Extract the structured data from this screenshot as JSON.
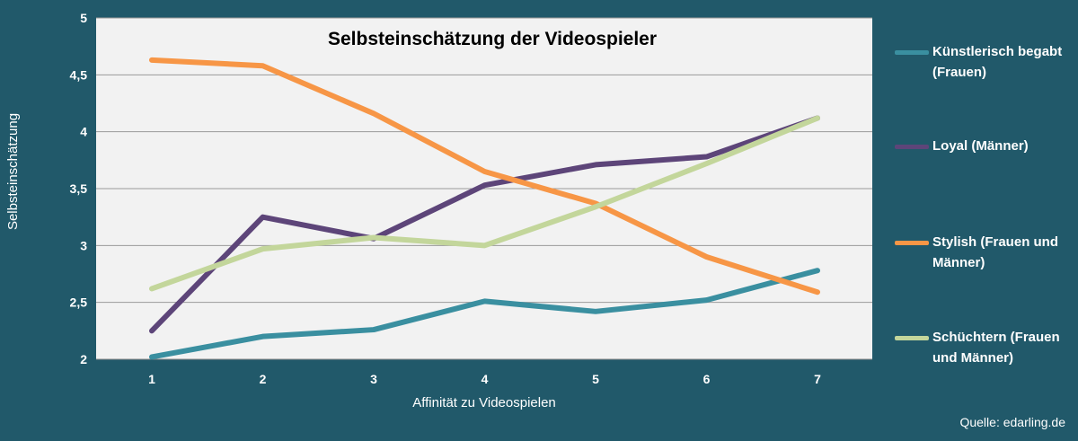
{
  "chart_data": {
    "type": "line",
    "title": "Selbsteinschätzung der Videospieler",
    "xlabel": "Affinität zu Videospielen",
    "ylabel": "Selbsteinschätzung",
    "x": [
      1,
      2,
      3,
      4,
      5,
      6,
      7
    ],
    "x_tick_labels": [
      "1",
      "2",
      "3",
      "4",
      "5",
      "6",
      "7"
    ],
    "ylim": [
      2,
      5
    ],
    "y_ticks": [
      2,
      2.5,
      3,
      3.5,
      4,
      4.5,
      5
    ],
    "y_tick_labels": [
      "2",
      "2,5",
      "3",
      "3,5",
      "4",
      "4,5",
      "5"
    ],
    "grid": "horizontal",
    "legend_position": "right",
    "series": [
      {
        "name": "Künstlerisch begabt (Frauen)",
        "name_lines": [
          "Künstlerisch begabt",
          "(Frauen)"
        ],
        "color": "#3a8fa0",
        "values": [
          2.02,
          2.2,
          2.26,
          2.51,
          2.42,
          2.52,
          2.78
        ]
      },
      {
        "name": "Loyal (Männer)",
        "name_lines": [
          "Loyal (Männer)"
        ],
        "color": "#5d4579",
        "values": [
          2.25,
          3.25,
          3.06,
          3.53,
          3.71,
          3.78,
          4.12
        ]
      },
      {
        "name": "Stylish (Frauen und Männer)",
        "name_lines": [
          "Stylish (Frauen und",
          "Männer)"
        ],
        "color": "#f79646",
        "values": [
          4.63,
          4.58,
          4.16,
          3.65,
          3.37,
          2.9,
          2.59
        ]
      },
      {
        "name": "Schüchtern (Frauen und Männer)",
        "name_lines": [
          "Schüchtern (Frauen",
          "und Männer)"
        ],
        "color": "#c3d69b",
        "values": [
          2.62,
          2.97,
          3.07,
          3.0,
          3.34,
          3.72,
          4.12
        ]
      }
    ]
  },
  "source": "Quelle: edarling.de"
}
